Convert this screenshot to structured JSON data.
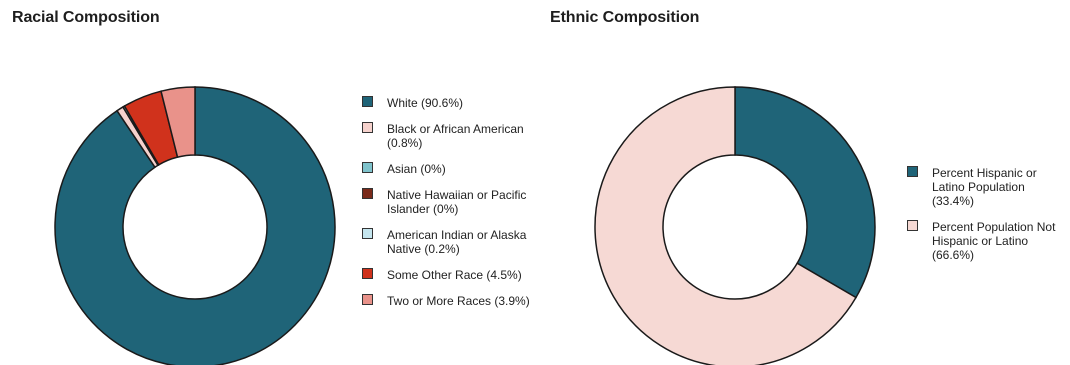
{
  "chart_data": [
    {
      "type": "pie",
      "style": "donut",
      "title": "Racial Composition",
      "categories": [
        "White",
        "Black or African American",
        "Asian",
        "Native Hawaiian or Pacific Islander",
        "American Indian or Alaska Native",
        "Some Other Race",
        "Two or More Races"
      ],
      "values": [
        90.6,
        0.8,
        0,
        0,
        0.2,
        4.5,
        3.9
      ],
      "legend_labels": [
        "White (90.6%)",
        "Black or African American (0.8%)",
        "Asian (0%)",
        "Native Hawaiian or Pacific Islander (0%)",
        "American Indian or Alaska Native (0.2%)",
        "Some Other Race (4.5%)",
        "Two or More Races (3.9%)"
      ],
      "colors": [
        "#1f6478",
        "#f6d2cd",
        "#7fc3cc",
        "#7a2a1a",
        "#c4e5ee",
        "#d0321c",
        "#e9928a"
      ],
      "legend_position": "right"
    },
    {
      "type": "pie",
      "style": "donut",
      "title": "Ethnic Composition",
      "categories": [
        "Percent Hispanic or Latino Population",
        "Percent Population Not Hispanic or Latino"
      ],
      "values": [
        33.4,
        66.6
      ],
      "legend_labels": [
        "Percent Hispanic or Latino Population (33.4%)",
        "Percent Population Not Hispanic or Latino (66.6%)"
      ],
      "colors": [
        "#1f6478",
        "#f6d9d4"
      ],
      "legend_position": "right"
    }
  ]
}
